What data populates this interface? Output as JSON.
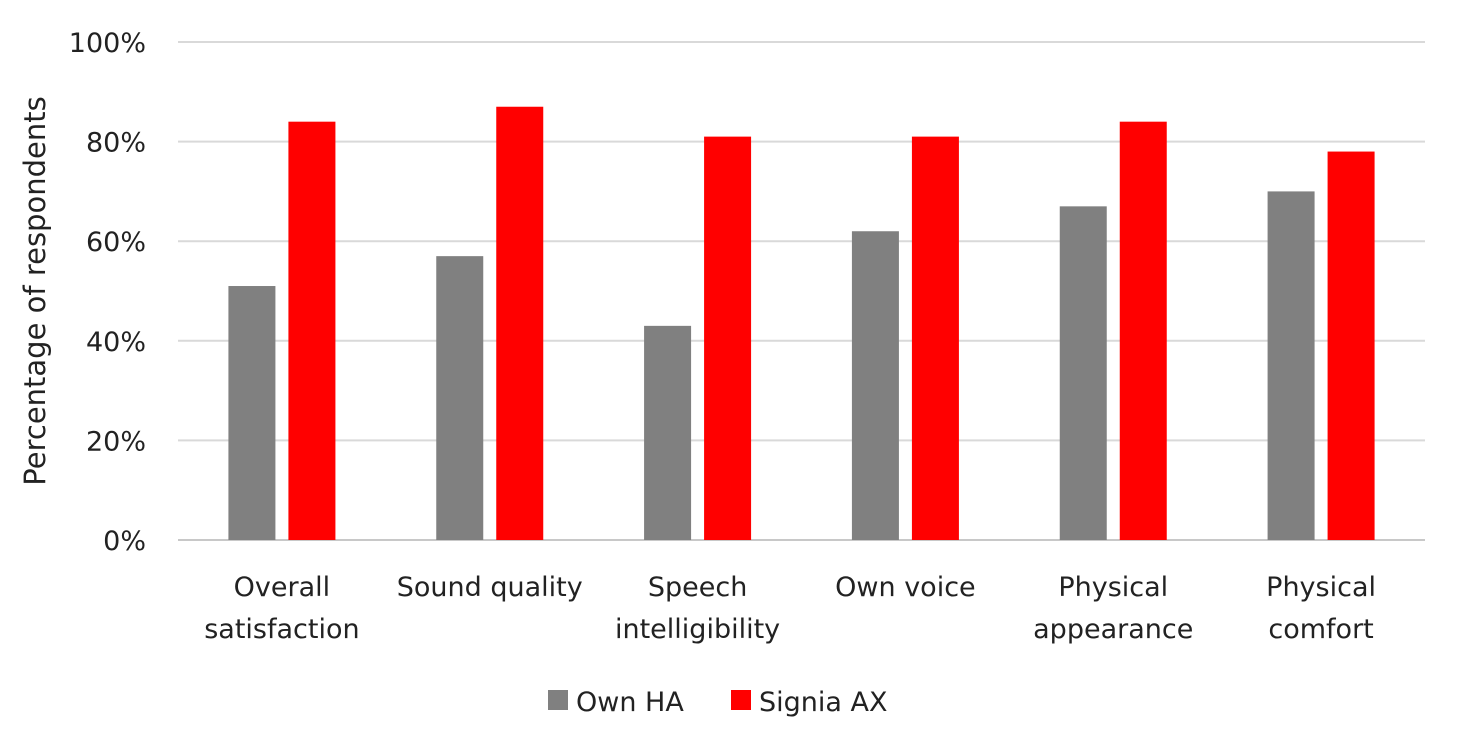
{
  "chart_data": {
    "type": "bar",
    "title": "",
    "xlabel": "",
    "ylabel": "Percentage of respondents",
    "ylim": [
      0,
      100
    ],
    "yticks": [
      "0%",
      "20%",
      "40%",
      "60%",
      "80%",
      "100%"
    ],
    "ytick_values": [
      0,
      20,
      40,
      60,
      80,
      100
    ],
    "grid": true,
    "legend_position": "bottom",
    "categories": [
      [
        "Overall",
        "satisfaction"
      ],
      [
        "Sound quality"
      ],
      [
        "Speech",
        "intelligibility"
      ],
      [
        "Own voice"
      ],
      [
        "Physical",
        "appearance"
      ],
      [
        "Physical",
        "comfort"
      ]
    ],
    "series": [
      {
        "name": "Own HA",
        "color": "#808080",
        "values": [
          51,
          57,
          43,
          62,
          67,
          70
        ]
      },
      {
        "name": "Signia AX",
        "color": "#ff0000",
        "values": [
          84,
          87,
          81,
          81,
          84,
          78
        ]
      }
    ]
  }
}
